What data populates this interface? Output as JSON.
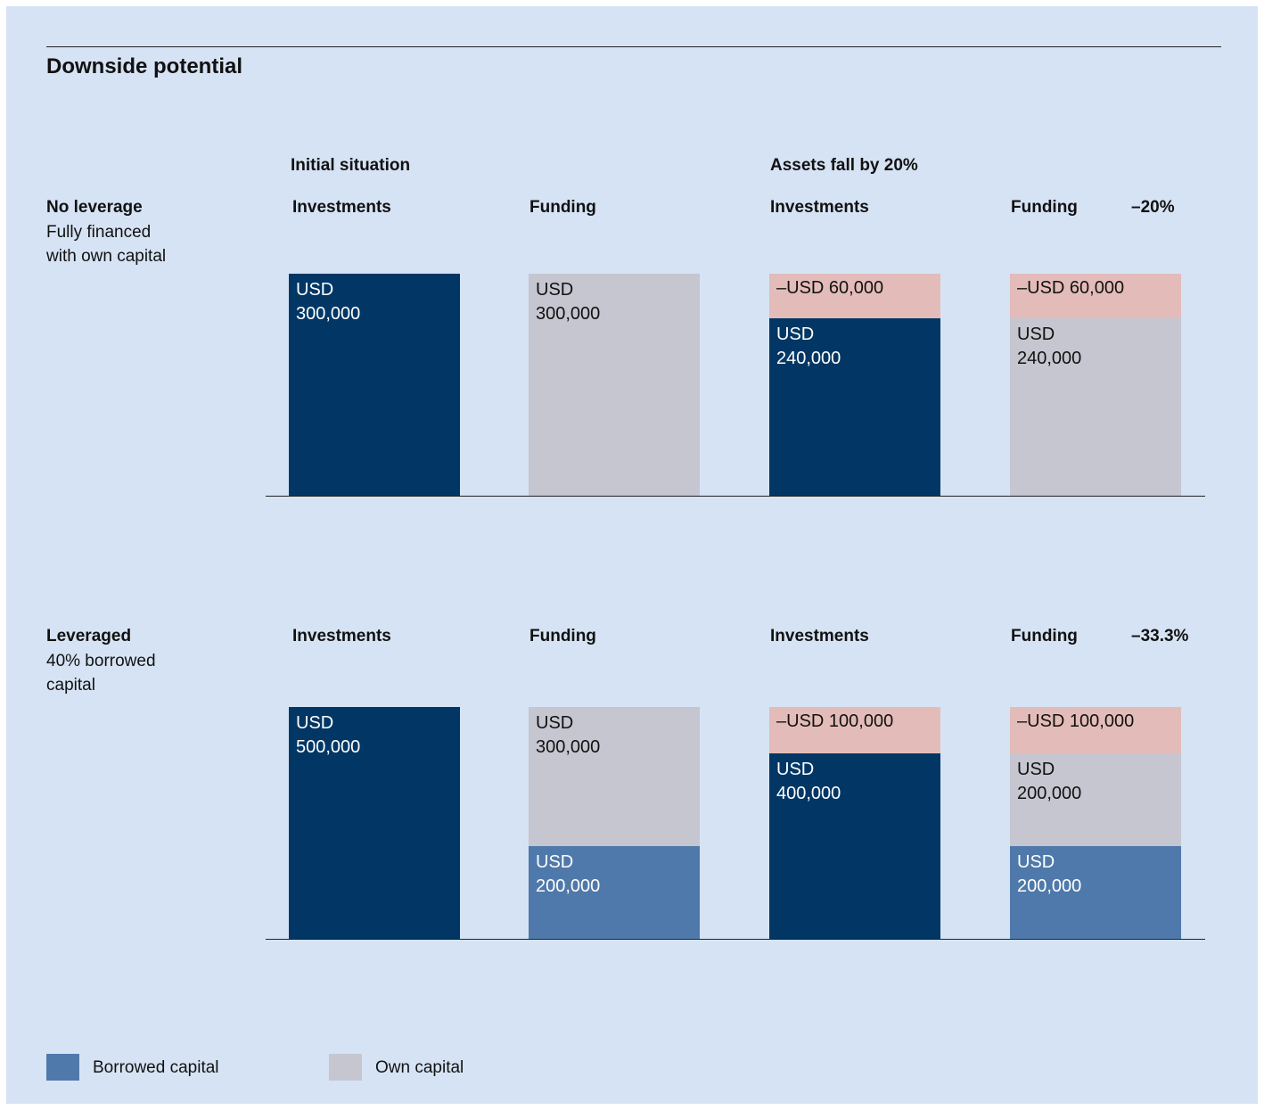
{
  "title": "Downside potential",
  "headers": {
    "initial": "Initial situation",
    "fall": "Assets fall by 20%"
  },
  "colors": {
    "investment": "#023765",
    "own": "#c5c6d0",
    "borrowed": "#4f79aa",
    "loss": "#e3bcb9",
    "panel": "#d6e3f4"
  },
  "chart_data": [
    {
      "type": "bar",
      "stacked": true,
      "title": "No leverage",
      "subtitle": [
        "Fully financed",
        "with own capital"
      ],
      "categories": [
        "Investments",
        "Funding",
        "Investments",
        "Funding"
      ],
      "change": "–20%",
      "ylim": [
        0,
        300000
      ],
      "bars": [
        {
          "segments": [
            {
              "kind": "investment",
              "value": 300000,
              "label": [
                "USD",
                "300,000"
              ]
            }
          ]
        },
        {
          "segments": [
            {
              "kind": "own",
              "value": 300000,
              "label": [
                "USD",
                "300,000"
              ]
            }
          ]
        },
        {
          "segments": [
            {
              "kind": "investment",
              "value": 240000,
              "label": [
                "USD",
                "240,000"
              ]
            },
            {
              "kind": "loss",
              "value": 60000,
              "label": [
                "–USD 60,000"
              ]
            }
          ]
        },
        {
          "segments": [
            {
              "kind": "own",
              "value": 240000,
              "label": [
                "USD",
                "240,000"
              ]
            },
            {
              "kind": "loss",
              "value": 60000,
              "label": [
                "–USD 60,000"
              ]
            }
          ]
        }
      ]
    },
    {
      "type": "bar",
      "stacked": true,
      "title": "Leveraged",
      "subtitle": [
        "40% borrowed",
        "capital"
      ],
      "categories": [
        "Investments",
        "Funding",
        "Investments",
        "Funding"
      ],
      "change": "–33.3%",
      "ylim": [
        0,
        500000
      ],
      "bars": [
        {
          "segments": [
            {
              "kind": "investment",
              "value": 500000,
              "label": [
                "USD",
                "500,000"
              ]
            }
          ]
        },
        {
          "segments": [
            {
              "kind": "borrowed",
              "value": 200000,
              "label": [
                "USD",
                "200,000"
              ]
            },
            {
              "kind": "own",
              "value": 300000,
              "label": [
                "USD",
                "300,000"
              ]
            }
          ]
        },
        {
          "segments": [
            {
              "kind": "investment",
              "value": 400000,
              "label": [
                "USD",
                "400,000"
              ]
            },
            {
              "kind": "loss",
              "value": 100000,
              "label": [
                "–USD 100,000"
              ]
            }
          ]
        },
        {
          "segments": [
            {
              "kind": "borrowed",
              "value": 200000,
              "label": [
                "USD",
                "200,000"
              ]
            },
            {
              "kind": "own",
              "value": 200000,
              "label": [
                "USD",
                "200,000"
              ]
            },
            {
              "kind": "loss",
              "value": 100000,
              "label": [
                "–USD 100,000"
              ]
            }
          ]
        }
      ]
    }
  ],
  "legend": [
    {
      "label": "Borrowed capital",
      "color": "#4f79aa"
    },
    {
      "label": "Own capital",
      "color": "#c5c6d0"
    }
  ]
}
